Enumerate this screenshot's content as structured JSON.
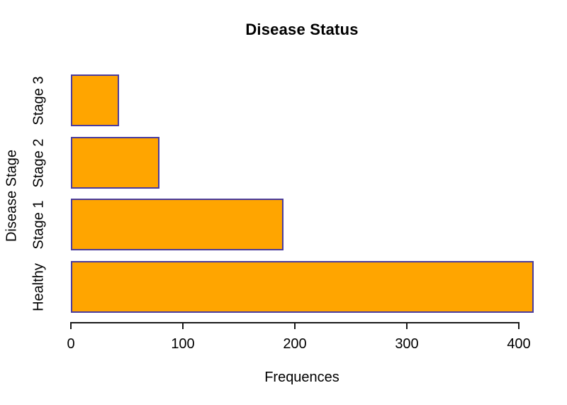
{
  "chart_data": {
    "type": "bar",
    "orientation": "horizontal",
    "title": "Disease Status",
    "xlabel": "Frequences",
    "ylabel": "Disease Stage",
    "categories": [
      "Healthy",
      "Stage 1",
      "Stage 2",
      "Stage 3"
    ],
    "values": [
      413,
      190,
      79,
      43
    ],
    "x_ticks": [
      0,
      100,
      200,
      300,
      400
    ],
    "xlim": [
      0,
      420
    ],
    "grid": false,
    "legend": false,
    "colors": {
      "bar_fill": "#FFA500",
      "bar_border": "#4A3C9E",
      "axis": "#1A1A1A",
      "text": "#000000",
      "background": "#FFFFFF"
    }
  }
}
